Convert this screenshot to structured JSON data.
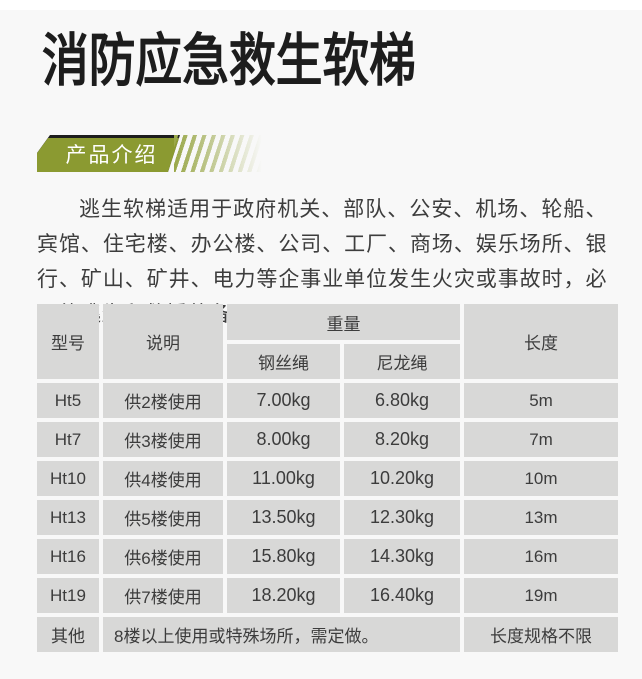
{
  "page": {
    "title": "消防应急救生软梯",
    "section_badge": "产品介绍",
    "intro": "逃生软梯适用于政府机关、部队、公安、机场、轮船、宾馆、住宅楼、办公楼、公司、工厂、商场、娱乐场所、银行、矿山、矿井、电力等企事业单位发生火灾或事故时，必需的逃生和救援装备。"
  },
  "colors": {
    "accent_olive": "#8B9A31",
    "title_black": "#1D1D1D",
    "cell_gray": "#D8D8D7",
    "page_bg": "#F8F8F8"
  },
  "table": {
    "headers": {
      "model": "型号",
      "desc": "说明",
      "weight": "重量",
      "steel": "钢丝绳",
      "nylon": "尼龙绳",
      "length": "长度"
    },
    "rows": [
      {
        "model": "Ht5",
        "desc": "供2楼使用",
        "steel": "7.00kg",
        "nylon": "6.80kg",
        "length": "5m"
      },
      {
        "model": "Ht7",
        "desc": "供3楼使用",
        "steel": "8.00kg",
        "nylon": "8.20kg",
        "length": "7m"
      },
      {
        "model": "Ht10",
        "desc": "供4楼使用",
        "steel": "11.00kg",
        "nylon": "10.20kg",
        "length": "10m"
      },
      {
        "model": "Ht13",
        "desc": "供5楼使用",
        "steel": "13.50kg",
        "nylon": "12.30kg",
        "length": "13m"
      },
      {
        "model": "Ht16",
        "desc": "供6楼使用",
        "steel": "15.80kg",
        "nylon": "14.30kg",
        "length": "16m"
      },
      {
        "model": "Ht19",
        "desc": "供7楼使用",
        "steel": "18.20kg",
        "nylon": "16.40kg",
        "length": "19m"
      },
      {
        "model": "其他",
        "desc": "8楼以上使用或特殊场所，需定做。",
        "desc_colspan": 3,
        "length": "长度规格不限"
      }
    ]
  }
}
